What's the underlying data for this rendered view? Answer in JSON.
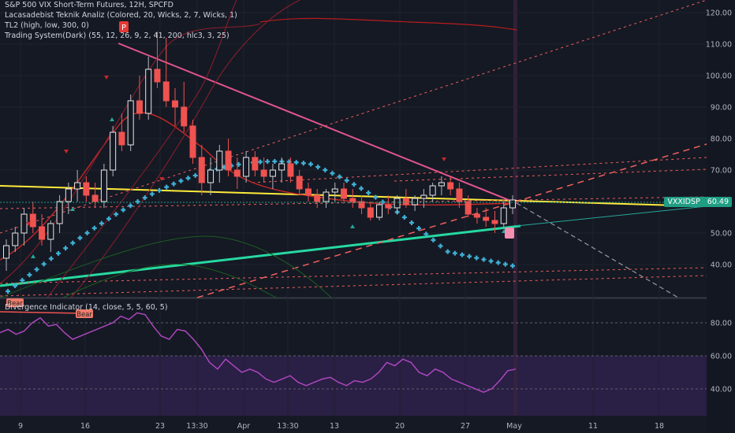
{
  "chart_data": [
    {
      "type": "candlestick",
      "title": "S&P 500 VIX Short-Term Futures, 12H, SPCFD",
      "indicators": [
        "Lacasadebist Teknik Analiz  (Colored, 20, Wicks, 2, 7, Wicks, 1)",
        "TL2 (high, low, 300, 0)",
        "Trading System(Dark) (55, 12, 26, 9, 2, 41, 200, hlc3, 3, 25)"
      ],
      "ylim": [
        30,
        125
      ],
      "y_ticks": [
        "120.00",
        "110.00",
        "100.00",
        "90.00",
        "80.00",
        "70.00",
        "50.00",
        "40.00"
      ],
      "x_ticks": [
        "9",
        "16",
        "23",
        "13:30",
        "Apr",
        "13:30",
        "13",
        "20",
        "27",
        "May",
        "11",
        "18"
      ],
      "last_price_label": {
        "symbol": "VXXIDSP",
        "value": "60.49"
      },
      "markers": [
        "P"
      ],
      "candles": [
        {
          "o": 42,
          "h": 48,
          "l": 38,
          "c": 46
        },
        {
          "o": 46,
          "h": 52,
          "l": 44,
          "c": 50
        },
        {
          "o": 50,
          "h": 58,
          "l": 46,
          "c": 56
        },
        {
          "o": 56,
          "h": 60,
          "l": 50,
          "c": 52
        },
        {
          "o": 52,
          "h": 56,
          "l": 46,
          "c": 48
        },
        {
          "o": 48,
          "h": 54,
          "l": 44,
          "c": 53
        },
        {
          "o": 53,
          "h": 62,
          "l": 50,
          "c": 60
        },
        {
          "o": 60,
          "h": 66,
          "l": 56,
          "c": 64
        },
        {
          "o": 64,
          "h": 70,
          "l": 60,
          "c": 66
        },
        {
          "o": 66,
          "h": 68,
          "l": 60,
          "c": 62
        },
        {
          "o": 62,
          "h": 66,
          "l": 58,
          "c": 60
        },
        {
          "o": 60,
          "h": 72,
          "l": 58,
          "c": 70
        },
        {
          "o": 70,
          "h": 84,
          "l": 68,
          "c": 82
        },
        {
          "o": 82,
          "h": 88,
          "l": 76,
          "c": 78
        },
        {
          "o": 78,
          "h": 94,
          "l": 76,
          "c": 92
        },
        {
          "o": 92,
          "h": 100,
          "l": 86,
          "c": 88
        },
        {
          "o": 88,
          "h": 106,
          "l": 86,
          "c": 102
        },
        {
          "o": 102,
          "h": 114,
          "l": 96,
          "c": 98
        },
        {
          "o": 98,
          "h": 112,
          "l": 90,
          "c": 92
        },
        {
          "o": 92,
          "h": 96,
          "l": 84,
          "c": 90
        },
        {
          "o": 90,
          "h": 98,
          "l": 82,
          "c": 84
        },
        {
          "o": 84,
          "h": 86,
          "l": 72,
          "c": 74
        },
        {
          "o": 74,
          "h": 78,
          "l": 62,
          "c": 66
        },
        {
          "o": 66,
          "h": 74,
          "l": 62,
          "c": 70
        },
        {
          "o": 70,
          "h": 78,
          "l": 66,
          "c": 76
        },
        {
          "o": 76,
          "h": 80,
          "l": 68,
          "c": 70
        },
        {
          "o": 70,
          "h": 74,
          "l": 64,
          "c": 68
        },
        {
          "o": 68,
          "h": 76,
          "l": 66,
          "c": 74
        },
        {
          "o": 74,
          "h": 76,
          "l": 68,
          "c": 70
        },
        {
          "o": 70,
          "h": 74,
          "l": 66,
          "c": 68
        },
        {
          "o": 68,
          "h": 72,
          "l": 64,
          "c": 70
        },
        {
          "o": 70,
          "h": 74,
          "l": 66,
          "c": 72
        },
        {
          "o": 72,
          "h": 74,
          "l": 66,
          "c": 68
        },
        {
          "o": 68,
          "h": 70,
          "l": 62,
          "c": 64
        },
        {
          "o": 64,
          "h": 66,
          "l": 60,
          "c": 62
        },
        {
          "o": 62,
          "h": 64,
          "l": 58,
          "c": 60
        },
        {
          "o": 60,
          "h": 64,
          "l": 58,
          "c": 63
        },
        {
          "o": 63,
          "h": 66,
          "l": 60,
          "c": 64
        },
        {
          "o": 64,
          "h": 66,
          "l": 60,
          "c": 61
        },
        {
          "o": 61,
          "h": 64,
          "l": 58,
          "c": 60
        },
        {
          "o": 60,
          "h": 62,
          "l": 56,
          "c": 58
        },
        {
          "o": 58,
          "h": 60,
          "l": 54,
          "c": 55
        },
        {
          "o": 55,
          "h": 60,
          "l": 54,
          "c": 59
        },
        {
          "o": 59,
          "h": 62,
          "l": 56,
          "c": 58
        },
        {
          "o": 58,
          "h": 62,
          "l": 56,
          "c": 61
        },
        {
          "o": 61,
          "h": 64,
          "l": 58,
          "c": 59
        },
        {
          "o": 59,
          "h": 62,
          "l": 57,
          "c": 61
        },
        {
          "o": 61,
          "h": 64,
          "l": 58,
          "c": 62
        },
        {
          "o": 62,
          "h": 66,
          "l": 60,
          "c": 65
        },
        {
          "o": 65,
          "h": 68,
          "l": 62,
          "c": 66
        },
        {
          "o": 66,
          "h": 68,
          "l": 62,
          "c": 64
        },
        {
          "o": 64,
          "h": 66,
          "l": 58,
          "c": 60
        },
        {
          "o": 60,
          "h": 62,
          "l": 55,
          "c": 56
        },
        {
          "o": 56,
          "h": 58,
          "l": 53,
          "c": 55
        },
        {
          "o": 55,
          "h": 58,
          "l": 52,
          "c": 54
        },
        {
          "o": 54,
          "h": 57,
          "l": 50,
          "c": 53
        },
        {
          "o": 53,
          "h": 60,
          "l": 52,
          "c": 58
        },
        {
          "o": 58,
          "h": 62,
          "l": 56,
          "c": 60.5
        }
      ]
    },
    {
      "type": "line",
      "title": "Divergence Indicator (14, close, 5, 5, 60, 5)",
      "ylim": [
        30,
        90
      ],
      "y_ticks": [
        "80.00",
        "60.00",
        "40.00"
      ],
      "markers": [
        "Bear",
        "Bear"
      ],
      "series": [
        {
          "values": [
            74,
            76,
            73,
            75,
            80,
            83,
            78,
            79,
            74,
            70,
            72,
            74,
            76,
            78,
            80,
            84,
            82,
            86,
            85,
            78,
            72,
            70,
            76,
            75,
            70,
            64,
            56,
            52,
            58,
            54,
            50,
            52,
            50,
            46,
            44,
            46,
            48,
            44,
            42,
            44,
            46,
            47,
            44,
            42,
            45,
            44,
            46,
            50,
            56,
            54,
            58,
            56,
            50,
            48,
            52,
            50,
            46,
            44,
            42,
            40,
            38,
            40,
            45,
            51,
            52
          ]
        }
      ]
    }
  ]
}
